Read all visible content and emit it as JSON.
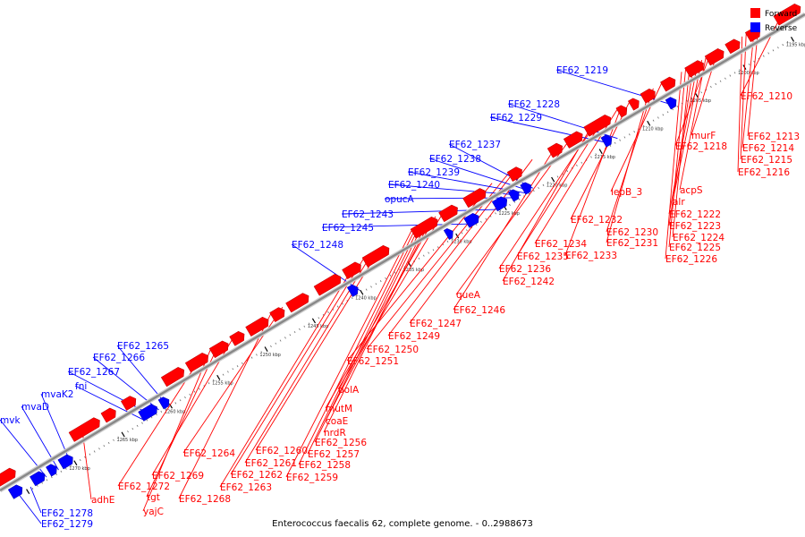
{
  "caption": "Enterococcus faecalis 62, complete genome. - 0..2988673",
  "legend": [
    {
      "label": "Forward",
      "color": "#ff0000"
    },
    {
      "label": "Reverse",
      "color": "#0000ff"
    }
  ],
  "colors": {
    "forward": "#ff0000",
    "reverse": "#0000ff",
    "backbone": "#888888"
  },
  "ticks": [
    "1195 kbp",
    "1200 kbp",
    "1205 kbp",
    "1210 kbp",
    "1215 kbp",
    "1220 kbp",
    "1225 kbp",
    "1230 kbp",
    "1235 kbp",
    "1240 kbp",
    "1245 kbp",
    "1250 kbp",
    "1255 kbp",
    "1260 kbp",
    "1265 kbp",
    "1270 kbp"
  ],
  "forward_labels": [
    "EF62_1210",
    "EF62_1213",
    "EF62_1214",
    "EF62_1215",
    "EF62_1216",
    "murF",
    "EF62_1218",
    "acpS",
    "lepB_3",
    "alr",
    "EF62_1222",
    "EF62_1223",
    "EF62_1224",
    "EF62_1225",
    "EF62_1226",
    "EF62_1230",
    "EF62_1231",
    "EF62_1232",
    "EF62_1233",
    "EF62_1234",
    "EF62_1235",
    "EF62_1236",
    "EF62_1242",
    "queA",
    "EF62_1246",
    "EF62_1247",
    "EF62_1249",
    "EF62_1250",
    "EF62_1251",
    "polA",
    "mutM",
    "coaE",
    "nrdR",
    "EF62_1256",
    "EF62_1257",
    "EF62_1258",
    "EF62_1259",
    "EF62_1260",
    "EF62_1261",
    "EF62_1262",
    "EF62_1263",
    "EF62_1264",
    "EF62_1268",
    "EF62_1269",
    "tgt",
    "yajC",
    "EF62_1272",
    "adhE"
  ],
  "reverse_labels": [
    "EF62_1219",
    "EF62_1228",
    "EF62_1229",
    "EF62_1237",
    "EF62_1238",
    "EF62_1239",
    "EF62_1240",
    "opucA",
    "EF62_1243",
    "EF62_1245",
    "EF62_1248",
    "EF62_1265",
    "EF62_1266",
    "EF62_1267",
    "fni",
    "mvaK2",
    "mvaD",
    "mvk",
    "EF62_1278",
    "EF62_1279"
  ]
}
